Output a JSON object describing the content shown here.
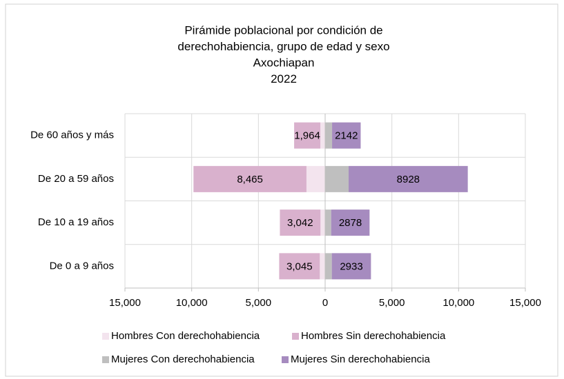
{
  "chart_data": {
    "type": "diverging_stacked_bar",
    "title": [
      "Pirámide poblacional por condición de",
      "derechohabiencia, grupo de edad y sexo",
      "Axochiapan",
      "2022"
    ],
    "categories": [
      "De 60 años y más",
      "De 20 a 59 años",
      "De 10 a 19 años",
      "De 0 a 9 años"
    ],
    "series": [
      {
        "name": "Hombres Con derechohabiencia",
        "color": "#f3e4ee",
        "values": [
          -360,
          -1400,
          -350,
          -400
        ]
      },
      {
        "name": "Hombres Sin derechohabiencia",
        "color": "#d9b1cd",
        "values": [
          -1964,
          -8465,
          -3042,
          -3045
        ],
        "value_labels": [
          "1,964",
          "8,465",
          "3,042",
          "3,045"
        ]
      },
      {
        "name": "Mujeres Con derechohabiencia",
        "color": "#bfbfbf",
        "values": [
          520,
          1760,
          450,
          500
        ]
      },
      {
        "name": "Mujeres Sin derechohabiencia",
        "color": "#a68bbf",
        "values": [
          2142,
          8928,
          2878,
          2933
        ],
        "data_labels": true
      }
    ],
    "xlim": [
      -15000,
      15000
    ],
    "xticks": [
      {
        "value": -15000,
        "label": "15,000"
      },
      {
        "value": -10000,
        "label": "10,000"
      },
      {
        "value": -5000,
        "label": "5,000"
      },
      0,
      {
        "value": 5000,
        "label": "5,000"
      },
      {
        "value": 10000,
        "label": "10,000"
      },
      {
        "value": 15000,
        "label": "15,000"
      }
    ],
    "grid": true,
    "legend": "bottom"
  }
}
